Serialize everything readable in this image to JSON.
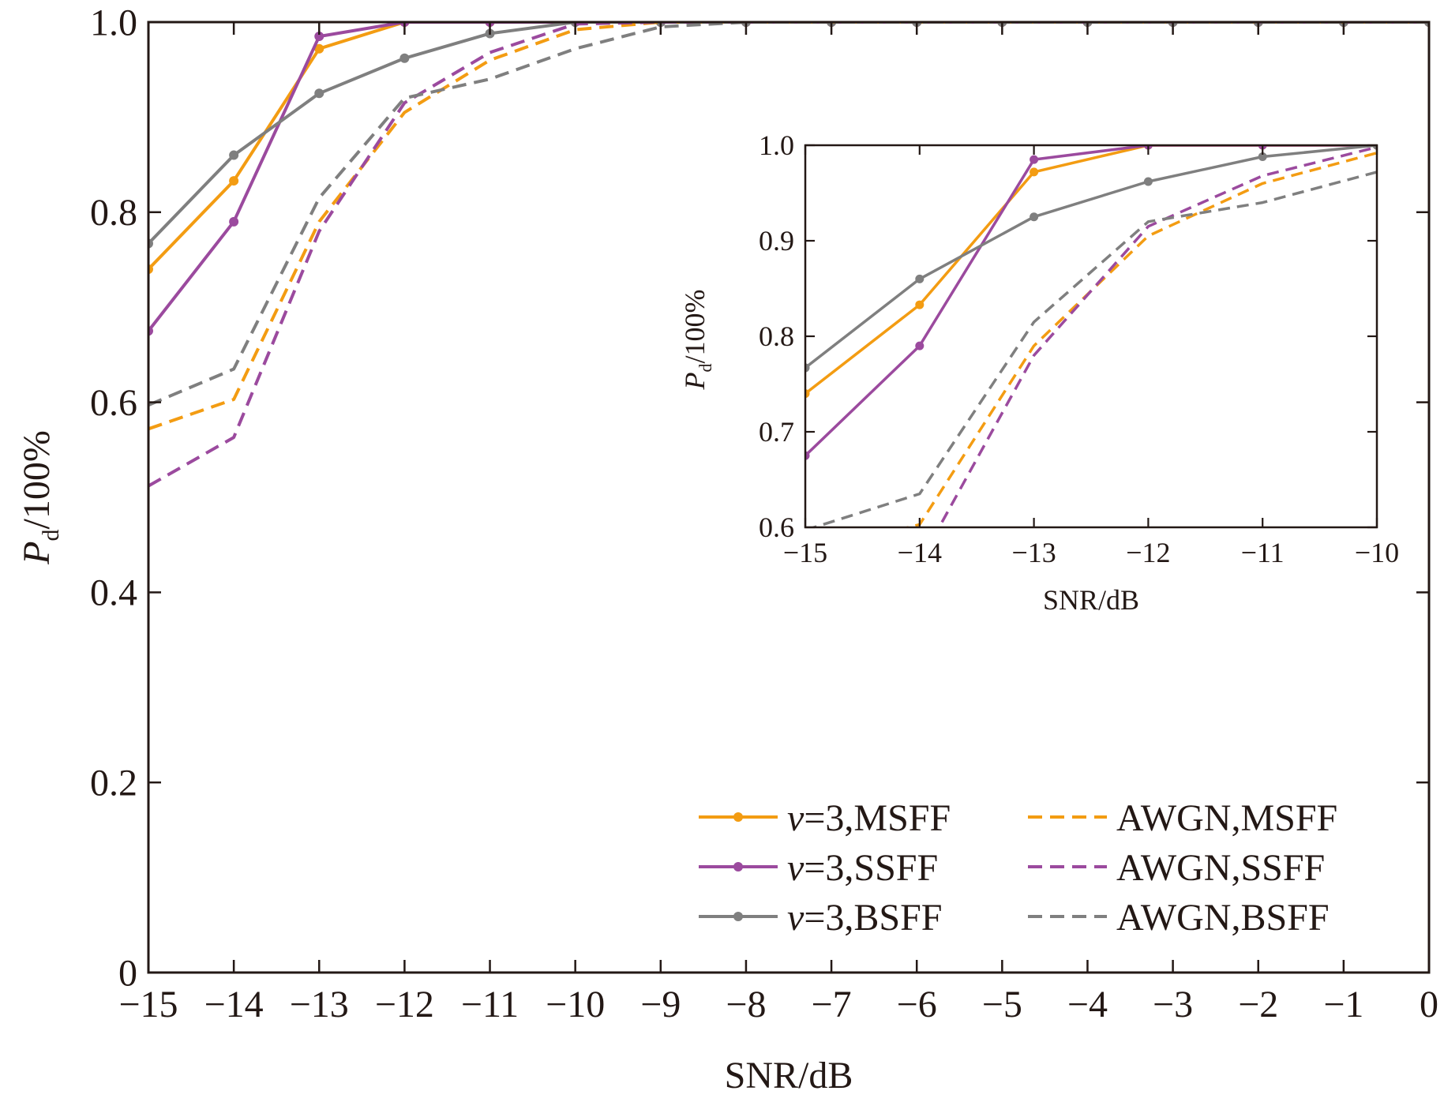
{
  "chart_data": [
    {
      "type": "line",
      "xlabel": "SNR/dB",
      "ylabel_main": "P",
      "ylabel_sub": "d",
      "ylabel_suffix": "/100%",
      "xlim": [
        -15,
        0
      ],
      "ylim": [
        0,
        1.0
      ],
      "xticks": [
        -15,
        -14,
        -13,
        -12,
        -11,
        -10,
        -9,
        -8,
        -7,
        -6,
        -5,
        -4,
        -3,
        -2,
        -1,
        0
      ],
      "xtick_labels": [
        "−15",
        "−14",
        "−13",
        "−12",
        "−11",
        "−10",
        "−9",
        "−8",
        "−7",
        "−6",
        "−5",
        "−4",
        "−3",
        "−2",
        "−1",
        "0"
      ],
      "yticks": [
        0,
        0.2,
        0.4,
        0.6,
        0.8,
        1.0
      ],
      "ytick_labels": [
        "0",
        "0.2",
        "0.4",
        "0.6",
        "0.8",
        "1.0"
      ],
      "grid": false,
      "legend_position": "bottom-right",
      "series": [
        {
          "name": "v=3,MSFF",
          "legend_italic": "v",
          "legend_rest": "=3,MSFF",
          "color": "#F39C12",
          "dashed": false,
          "marker": "square",
          "x": [
            -15,
            -14,
            -13,
            -12,
            -11,
            -10,
            -9,
            -8,
            -7,
            -6,
            -5,
            -4,
            -3,
            -2,
            -1,
            0
          ],
          "y": [
            0.74,
            0.833,
            0.972,
            1.0,
            1.0,
            1.0,
            1.0,
            1.0,
            1.0,
            1.0,
            1.0,
            1.0,
            1.0,
            1.0,
            1.0,
            1.0
          ]
        },
        {
          "name": "v=3,SSFF",
          "legend_italic": "v",
          "legend_rest": "=3,SSFF",
          "color": "#9B4A9E",
          "dashed": false,
          "marker": "circle",
          "x": [
            -15,
            -14,
            -13,
            -12,
            -11,
            -10,
            -9,
            -8,
            -7,
            -6,
            -5,
            -4,
            -3,
            -2,
            -1,
            0
          ],
          "y": [
            0.675,
            0.79,
            0.985,
            1.0,
            1.0,
            1.0,
            1.0,
            1.0,
            1.0,
            1.0,
            1.0,
            1.0,
            1.0,
            1.0,
            1.0,
            1.0
          ]
        },
        {
          "name": "v=3,BSFF",
          "legend_italic": "v",
          "legend_rest": "=3,BSFF",
          "color": "#7F7F7F",
          "dashed": false,
          "marker": "circle",
          "x": [
            -15,
            -14,
            -13,
            -12,
            -11,
            -10,
            -9,
            -8,
            -7,
            -6,
            -5,
            -4,
            -3,
            -2,
            -1,
            0
          ],
          "y": [
            0.767,
            0.86,
            0.925,
            0.962,
            0.988,
            1.0,
            1.0,
            1.0,
            1.0,
            1.0,
            1.0,
            1.0,
            1.0,
            1.0,
            1.0,
            1.0
          ]
        },
        {
          "name": "AWGN,MSFF",
          "color": "#F39C12",
          "dashed": true,
          "marker": "none",
          "x": [
            -15,
            -14,
            -13,
            -12,
            -11,
            -10,
            -9,
            -8,
            -7,
            -6,
            -5,
            -4,
            -3,
            -2,
            -1,
            0
          ],
          "y": [
            0.572,
            0.603,
            0.79,
            0.905,
            0.96,
            0.992,
            1.0,
            1.0,
            1.0,
            1.0,
            1.0,
            1.0,
            1.0,
            1.0,
            1.0,
            1.0
          ]
        },
        {
          "name": "AWGN,SSFF",
          "color": "#9B4A9E",
          "dashed": true,
          "marker": "none",
          "x": [
            -15,
            -14,
            -13,
            -12,
            -11,
            -10,
            -9,
            -8,
            -7,
            -6,
            -5,
            -4,
            -3,
            -2,
            -1,
            0
          ],
          "y": [
            0.512,
            0.563,
            0.78,
            0.915,
            0.968,
            0.998,
            1.0,
            1.0,
            1.0,
            1.0,
            1.0,
            1.0,
            1.0,
            1.0,
            1.0,
            1.0
          ]
        },
        {
          "name": "AWGN,BSFF",
          "color": "#7F7F7F",
          "dashed": true,
          "marker": "none",
          "x": [
            -15,
            -14,
            -13,
            -12,
            -11,
            -10,
            -9,
            -8,
            -7,
            -6,
            -5,
            -4,
            -3,
            -2,
            -1,
            0
          ],
          "y": [
            0.597,
            0.635,
            0.815,
            0.92,
            0.94,
            0.972,
            0.995,
            1.0,
            1.0,
            1.0,
            1.0,
            1.0,
            1.0,
            1.0,
            1.0,
            1.0
          ]
        }
      ]
    },
    {
      "type": "line",
      "role": "inset",
      "xlabel": "SNR/dB",
      "ylabel_main": "P",
      "ylabel_sub": "d",
      "ylabel_suffix": "/100%",
      "xlim": [
        -15,
        -10
      ],
      "ylim": [
        0.6,
        1.0
      ],
      "xticks": [
        -15,
        -14,
        -13,
        -12,
        -11,
        -10
      ],
      "xtick_labels": [
        "−15",
        "−14",
        "−13",
        "−12",
        "−11",
        "−10"
      ],
      "yticks": [
        0.6,
        0.7,
        0.8,
        0.9,
        1.0
      ],
      "ytick_labels": [
        "0.6",
        "0.7",
        "0.8",
        "0.9",
        "1.0"
      ],
      "grid": false,
      "series_ref": "same series as main chart, clipped to inset range"
    }
  ]
}
